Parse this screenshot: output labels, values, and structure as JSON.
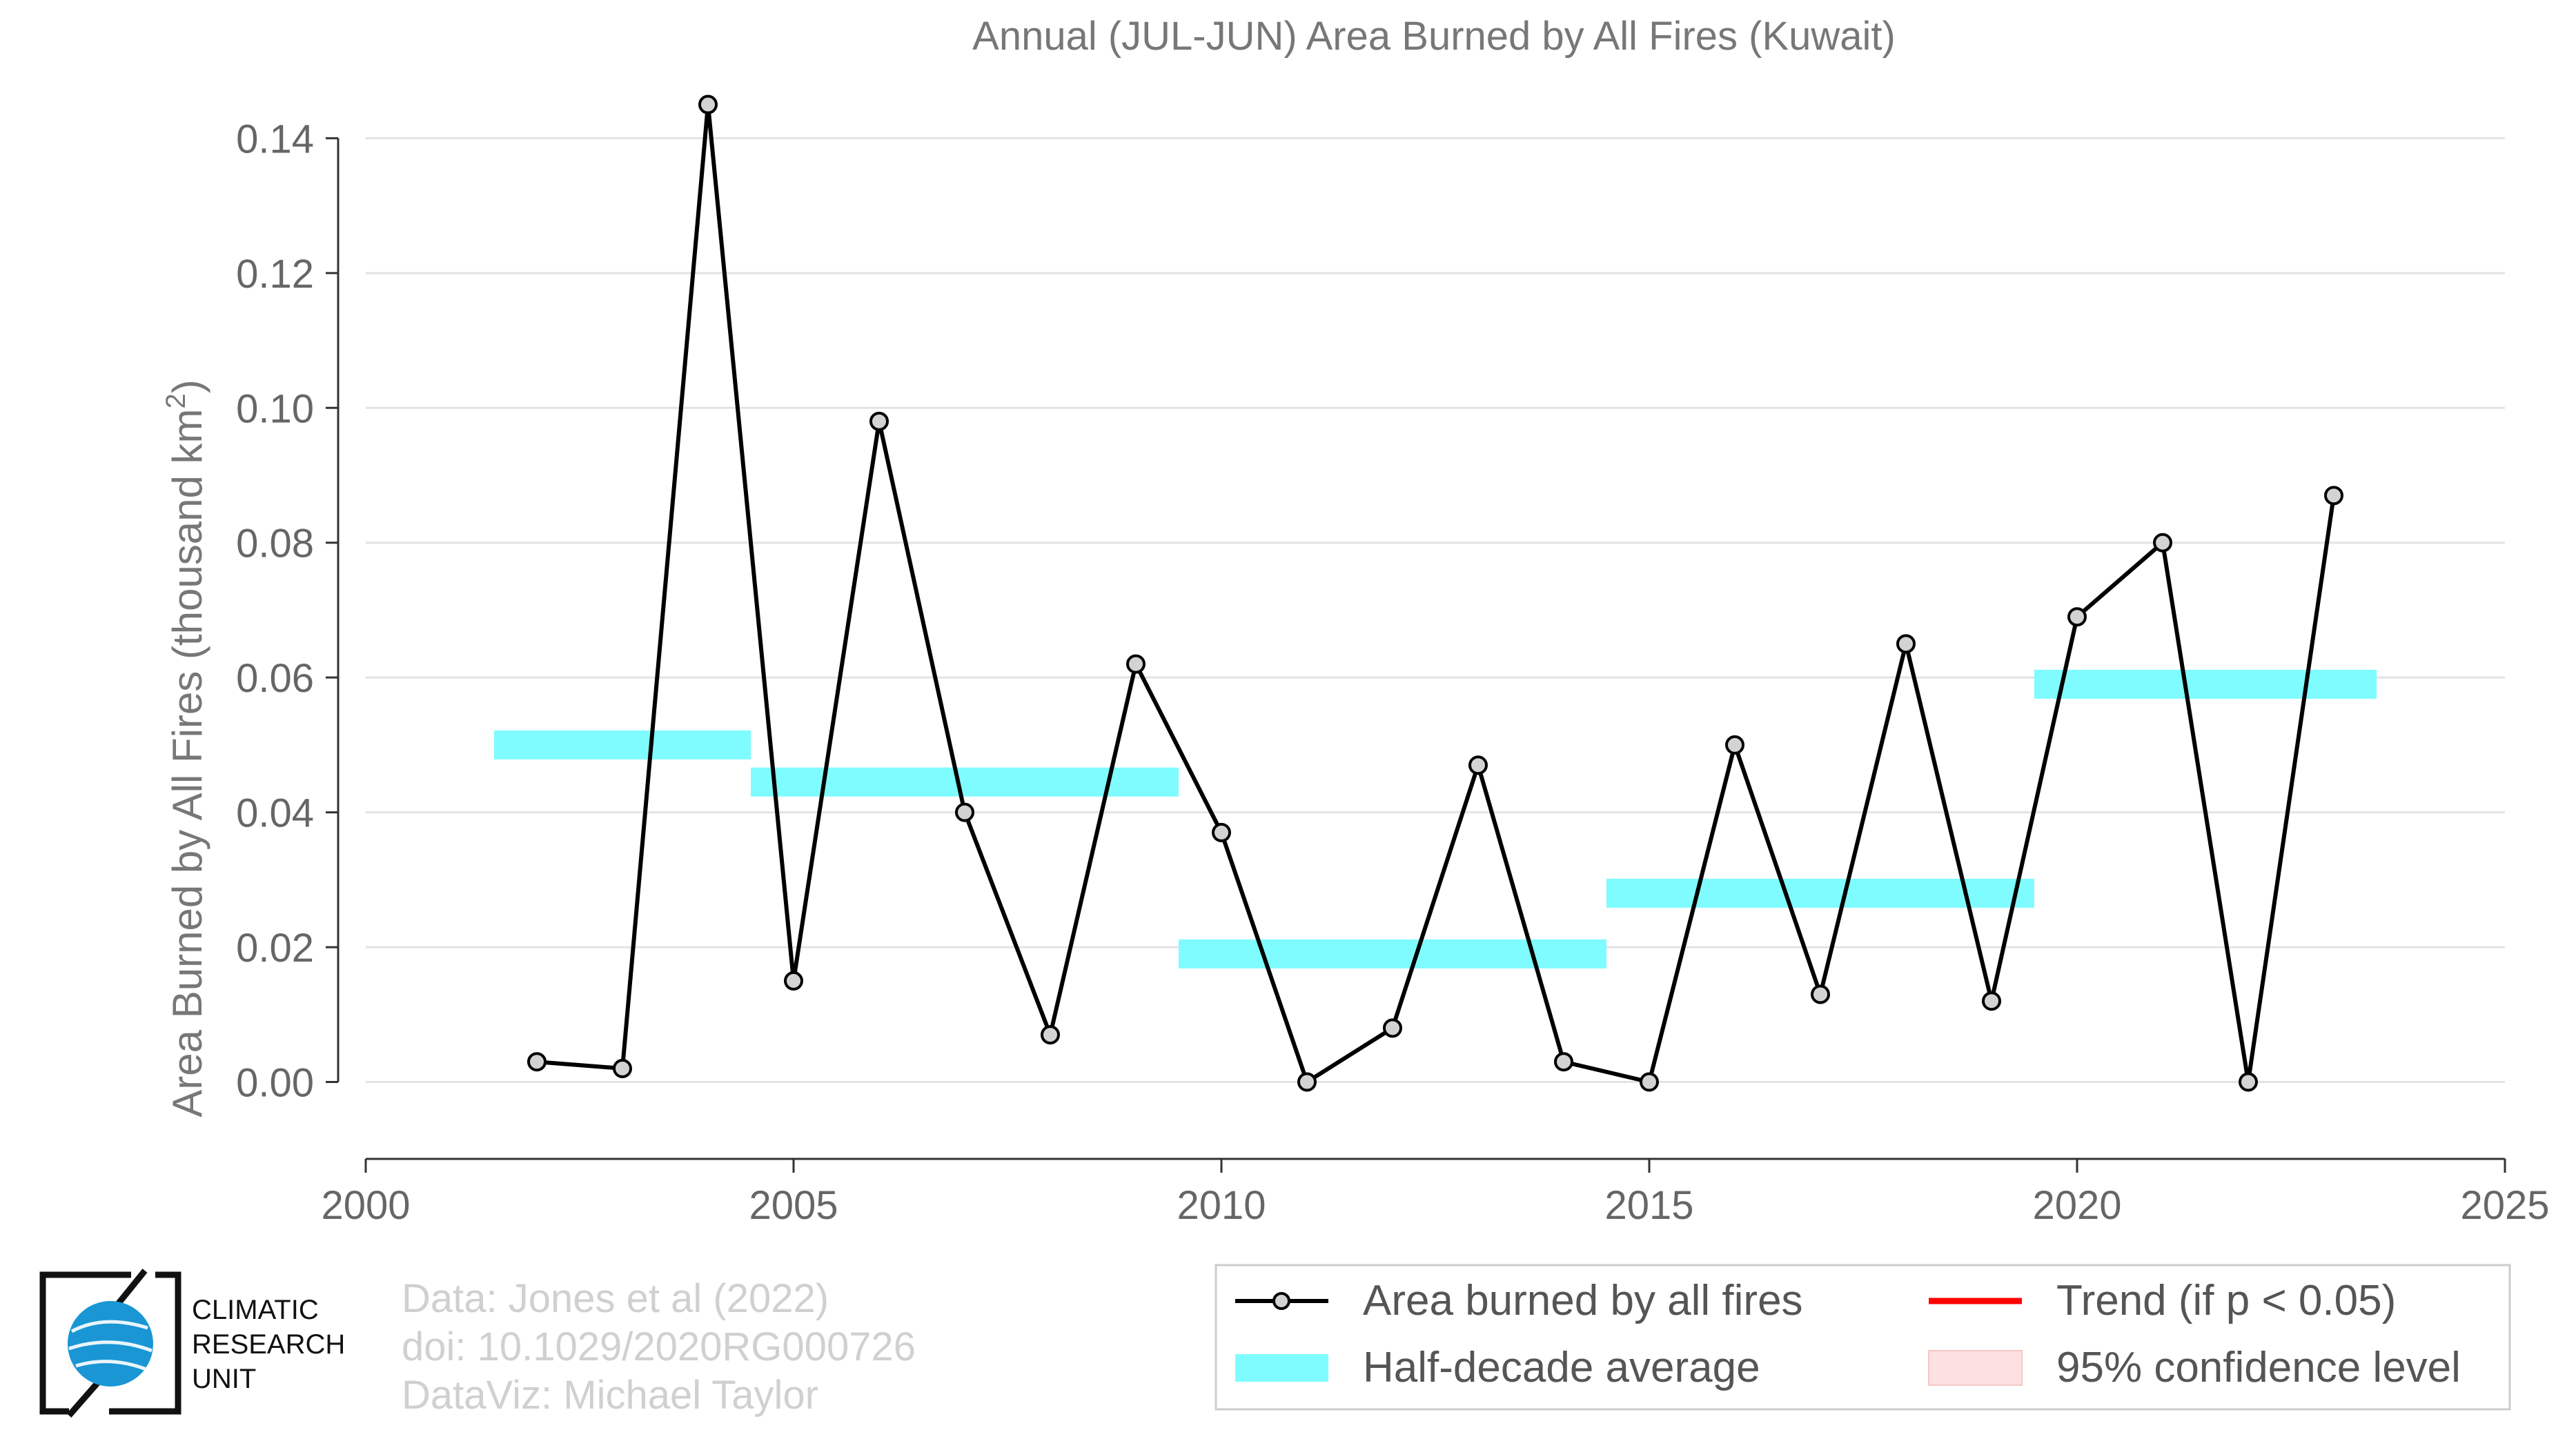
{
  "chart_data": {
    "type": "line",
    "title": "Annual (JUL-JUN) Area Burned by All Fires (Kuwait)",
    "xlabel": "",
    "ylabel": "Area Burned by All Fires (thousand km",
    "ylabel_superscript": "2",
    "ylabel_suffix": ")",
    "xlim": [
      2000,
      2025
    ],
    "ylim": [
      -0.011,
      0.147
    ],
    "x_ticks": [
      2000,
      2005,
      2010,
      2015,
      2020,
      2025
    ],
    "x_tick_labels": [
      "2000",
      "2005",
      "2010",
      "2015",
      "2020",
      "2025"
    ],
    "y_ticks": [
      0.0,
      0.02,
      0.04,
      0.06,
      0.08,
      0.1,
      0.12,
      0.14
    ],
    "y_tick_labels": [
      "0.00",
      "0.02",
      "0.04",
      "0.06",
      "0.08",
      "0.10",
      "0.12",
      "0.14"
    ],
    "grid": "horizontal",
    "series": [
      {
        "name": "Area burned by all fires",
        "color": "#000000",
        "marker_fill": "#d3d3d3",
        "x": [
          2002,
          2003,
          2004,
          2005,
          2006,
          2007,
          2008,
          2009,
          2010,
          2011,
          2012,
          2013,
          2014,
          2015,
          2016,
          2017,
          2018,
          2019,
          2020,
          2021,
          2022,
          2023
        ],
        "y": [
          0.003,
          0.002,
          0.145,
          0.015,
          0.098,
          0.04,
          0.007,
          0.062,
          0.037,
          0.0,
          0.008,
          0.047,
          0.003,
          0.0,
          0.05,
          0.013,
          0.065,
          0.012,
          0.069,
          0.08,
          0.0,
          0.087
        ]
      }
    ],
    "half_decade_average": {
      "name": "Half-decade average",
      "color": "#7ffcff",
      "segments": [
        {
          "x_start": 2001.5,
          "x_end": 2004.5,
          "value": 0.05
        },
        {
          "x_start": 2004.5,
          "x_end": 2009.5,
          "value": 0.0445
        },
        {
          "x_start": 2009.5,
          "x_end": 2014.5,
          "value": 0.019
        },
        {
          "x_start": 2014.5,
          "x_end": 2019.5,
          "value": 0.028
        },
        {
          "x_start": 2019.5,
          "x_end": 2023.5,
          "value": 0.059
        }
      ]
    },
    "legend": {
      "placement": "bottom-right",
      "entries": [
        {
          "label": "Area burned by all fires",
          "kind": "line-marker",
          "color": "#000000"
        },
        {
          "label": "Trend (if p < 0.05)",
          "kind": "line",
          "color": "#ff0000"
        },
        {
          "label": "Half-decade average",
          "kind": "band",
          "color": "#7ffcff"
        },
        {
          "label": "95% confidence level",
          "kind": "band",
          "color": "#fde0e0"
        }
      ]
    }
  },
  "credits": {
    "line1": "Data: Jones et al (2022)",
    "line2": "doi: 10.1029/2020RG000726",
    "line3": "DataViz: Michael Taylor"
  },
  "logo": {
    "line1": "CLIMATIC",
    "line2": "RESEARCH",
    "line3": "UNIT",
    "accent": "#1a96d4"
  }
}
